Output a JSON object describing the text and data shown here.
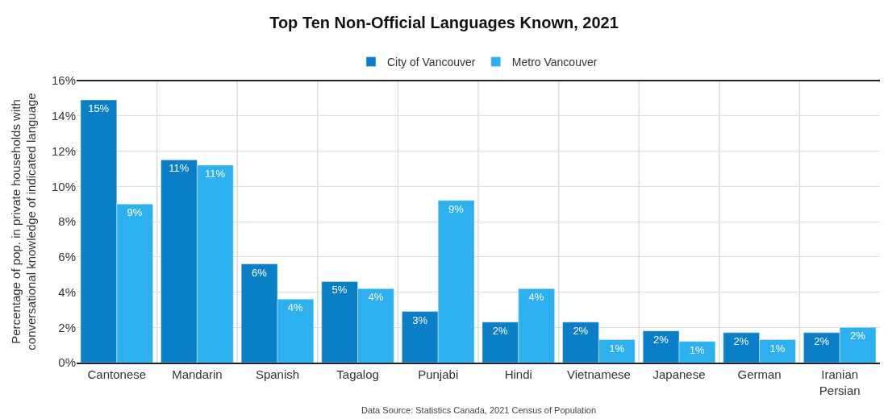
{
  "chart_data": {
    "type": "bar",
    "title": "Top Ten Non-Official Languages Known, 2021",
    "ylabel": "Percentage of pop. in private households with conversational knowledge of indicated language",
    "categories": [
      "Cantonese",
      "Mandarin",
      "Spanish",
      "Tagalog",
      "Punjabi",
      "Hindi",
      "Vietnamese",
      "Japanese",
      "German",
      "Iranian Persian"
    ],
    "series": [
      {
        "name": "City of Vancouver",
        "color": "#0a7fc8",
        "values": [
          14.9,
          11.5,
          5.6,
          4.6,
          2.9,
          2.3,
          2.3,
          1.8,
          1.7,
          1.7
        ],
        "value_labels": [
          "15%",
          "11%",
          "6%",
          "5%",
          "3%",
          "2%",
          "2%",
          "2%",
          "2%",
          "2%"
        ]
      },
      {
        "name": "Metro Vancouver",
        "color": "#2cb0f0",
        "values": [
          9.0,
          11.2,
          3.6,
          4.2,
          9.2,
          4.2,
          1.3,
          1.2,
          1.3,
          2.0
        ],
        "value_labels": [
          "9%",
          "11%",
          "4%",
          "4%",
          "9%",
          "4%",
          "1%",
          "1%",
          "1%",
          "2%"
        ]
      }
    ],
    "ylim": [
      0,
      16
    ],
    "yticks": [
      {
        "value": 0,
        "label": "0%"
      },
      {
        "value": 2,
        "label": "2%"
      },
      {
        "value": 4,
        "label": "4%"
      },
      {
        "value": 6,
        "label": "6%"
      },
      {
        "value": 8,
        "label": "8%"
      },
      {
        "value": 10,
        "label": "10%"
      },
      {
        "value": 12,
        "label": "12%"
      },
      {
        "value": 14,
        "label": "14%"
      },
      {
        "value": 16,
        "label": "16%"
      }
    ],
    "grid": true,
    "legend": "top",
    "annotations": [
      "Data Source: Statistics Canada, 2021 Census of Population"
    ]
  }
}
